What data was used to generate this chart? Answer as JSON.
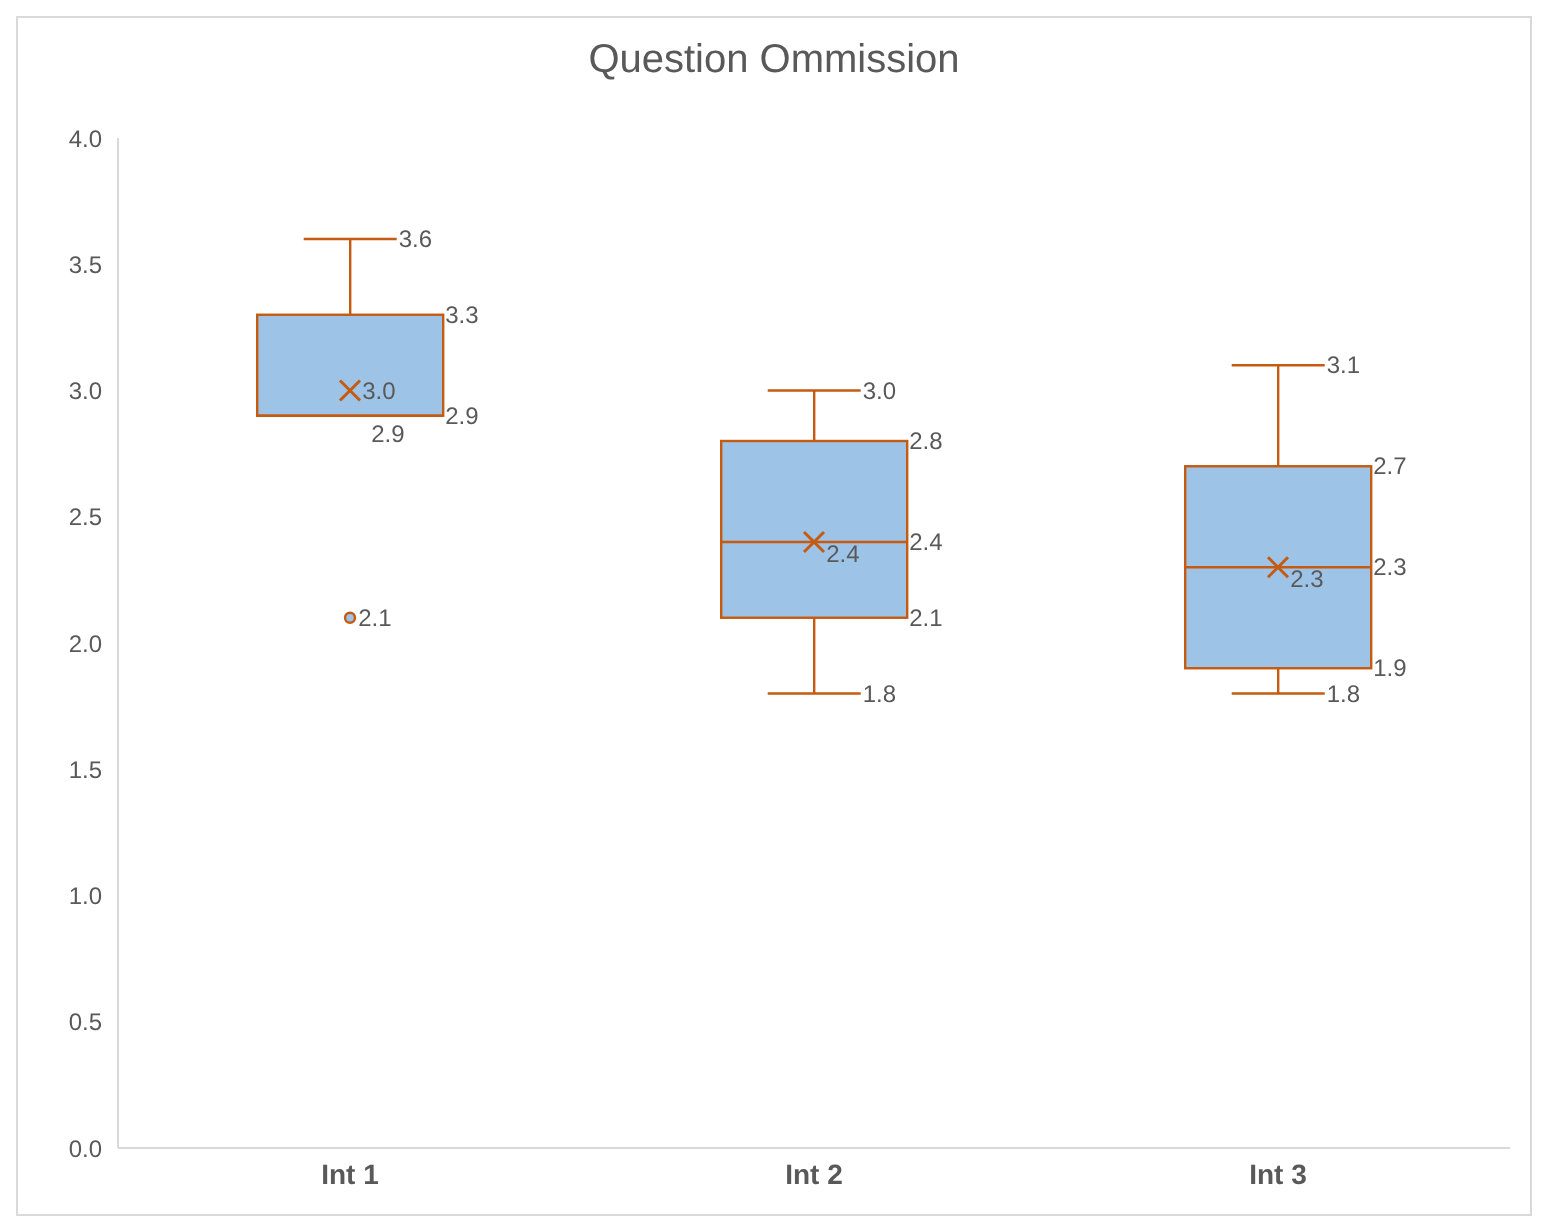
{
  "chart_data": {
    "type": "box",
    "title": "Question Ommission",
    "categories": [
      "Int 1",
      "Int 2",
      "Int 3"
    ],
    "boxes": [
      {
        "low": 2.9,
        "q1": 2.9,
        "median": 2.9,
        "q3": 3.3,
        "high": 3.6,
        "mean": 3.0,
        "outliers": [
          2.1
        ]
      },
      {
        "low": 1.8,
        "q1": 2.1,
        "median": 2.4,
        "q3": 2.8,
        "high": 3.0,
        "mean": 2.4
      },
      {
        "low": 1.8,
        "q1": 1.9,
        "median": 2.3,
        "q3": 2.7,
        "high": 3.1,
        "mean": 2.3
      }
    ],
    "annotations": [
      "3.6",
      "3.3",
      "2.9",
      "2.9",
      "3.0",
      "2.1",
      "3.0",
      "2.8",
      "2.4",
      "2.1",
      "1.8",
      "2.4",
      "3.1",
      "2.7",
      "2.3",
      "1.9",
      "1.8",
      "2.3"
    ],
    "color": "#9dc3e6",
    "ylim": [
      0,
      4
    ],
    "yticks": [
      {
        "value": 0,
        "label": "0.0"
      },
      {
        "value": 0.5,
        "label": "0.5"
      },
      {
        "value": 1,
        "label": "1.0"
      },
      {
        "value": 1.5,
        "label": "1.5"
      },
      {
        "value": 2,
        "label": "2.0"
      },
      {
        "value": 2.5,
        "label": "2.5"
      },
      {
        "value": 3,
        "label": "3.0"
      },
      {
        "value": 3.5,
        "label": "3.5"
      },
      {
        "value": 4,
        "label": "4.0"
      }
    ],
    "grid": false,
    "legend": false
  }
}
